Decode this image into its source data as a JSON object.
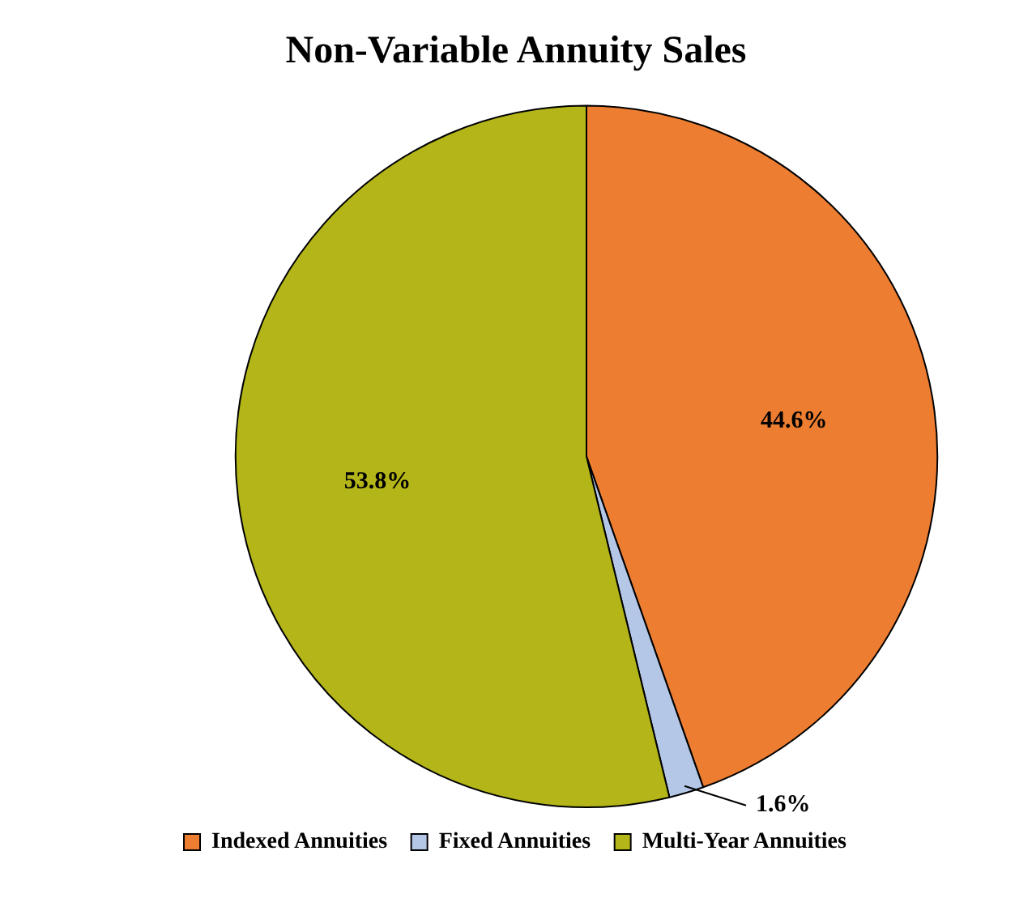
{
  "chart_data": {
    "type": "pie",
    "title": "Non-Variable Annuity Sales",
    "categories": [
      "Indexed Annuities",
      "Fixed Annuities",
      "Multi-Year Annuities"
    ],
    "values": [
      44.6,
      1.6,
      53.8
    ],
    "colors": [
      "#ed7d31",
      "#b4c7e7",
      "#b3b518"
    ],
    "value_labels": [
      "44.6%",
      "1.6%",
      "53.8%"
    ],
    "legend": "bottom"
  }
}
